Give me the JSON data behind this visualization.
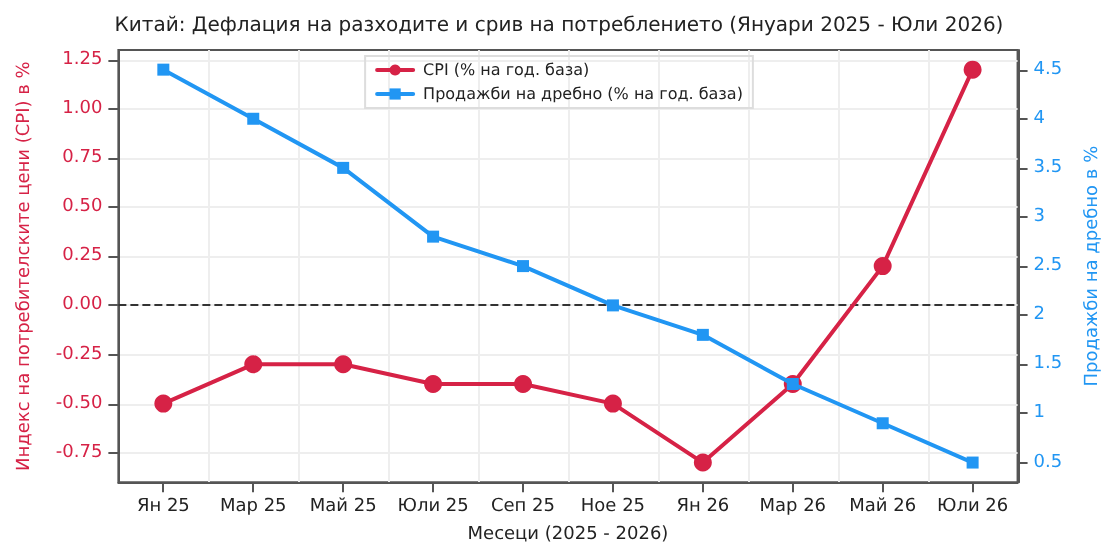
{
  "chart_data": {
    "type": "line",
    "title": "Китай: Дефлация на разходите и срив на потреблението (Януари 2025 - Юли 2026)",
    "xlabel": "Месеци (2025 - 2026)",
    "ylabel": "Индекс на потребителските цени (CPI) в %",
    "y2label": "Продажби на дребно в %",
    "categories": [
      "Ян 25",
      "Мар 25",
      "Май 25",
      "Юли 25",
      "Сеп 25",
      "Ное 25",
      "Ян 26",
      "Мар 26",
      "Май 26",
      "Юли 26"
    ],
    "series": [
      {
        "name": "CPI (% на год. база)",
        "color": "#d62246",
        "marker": "circle",
        "values": [
          -0.5,
          -0.3,
          -0.3,
          -0.4,
          -0.4,
          -0.5,
          -0.8,
          -0.4,
          0.2,
          1.2
        ]
      },
      {
        "name": "Продажби на дребно (% на год. база)",
        "color": "#2196f3",
        "marker": "square",
        "axis": "y2",
        "values": [
          4.5,
          4.0,
          3.5,
          2.8,
          2.5,
          2.1,
          1.8,
          1.3,
          0.9,
          0.5
        ]
      }
    ],
    "ylim": [
      -0.9,
      1.3
    ],
    "yticks": [
      {
        "value": -0.75,
        "label": "-0.75"
      },
      {
        "value": -0.5,
        "label": "-0.50"
      },
      {
        "value": -0.25,
        "label": "-0.25"
      },
      {
        "value": 0,
        "label": "0.00"
      },
      {
        "value": 0.25,
        "label": "0.25"
      },
      {
        "value": 0.5,
        "label": "0.50"
      },
      {
        "value": 0.75,
        "label": "0.75"
      },
      {
        "value": 1,
        "label": "1.00"
      },
      {
        "value": 1.25,
        "label": "1.25"
      }
    ],
    "y2lim": [
      0.3,
      4.7
    ],
    "y2ticks": [
      0.5,
      1.0,
      1.5,
      2.0,
      2.5,
      3.0,
      3.5,
      4.0,
      4.5
    ],
    "ref_lines": [
      {
        "axis": "y",
        "value": 0,
        "color": "#333333",
        "line_style": "dashed"
      }
    ],
    "grid": true,
    "legend": "top",
    "line_style": "solid"
  }
}
